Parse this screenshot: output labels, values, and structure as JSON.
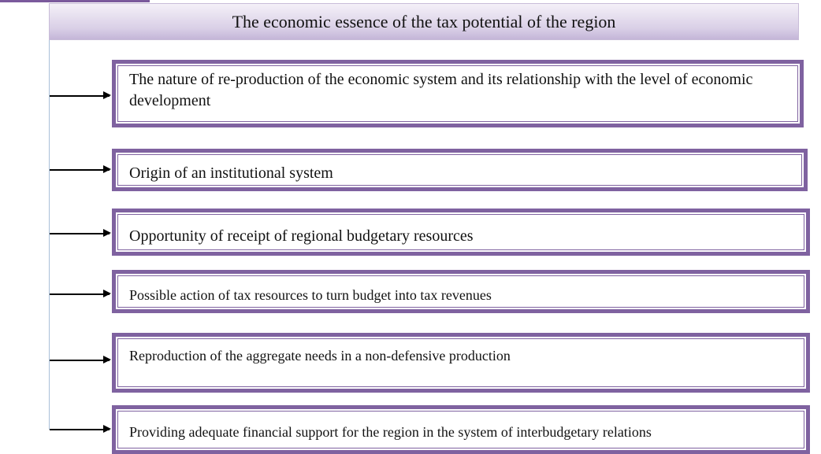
{
  "title": "The economic essence of the tax potential of the region",
  "items": [
    "The nature of re-production of the economic system and its relationship with the level of economic development",
    "Origin of an institutional system",
    "Opportunity of receipt of regional budgetary resources",
    "Possible action of tax resources to turn budget into tax revenues",
    "Reproduction of the aggregate needs in a non-defensive production",
    "Providing adequate financial support for the region in the system of interbudgetary relations"
  ],
  "colors": {
    "box_border": "#7f62a0",
    "header_bg": "#d9cfe6"
  }
}
